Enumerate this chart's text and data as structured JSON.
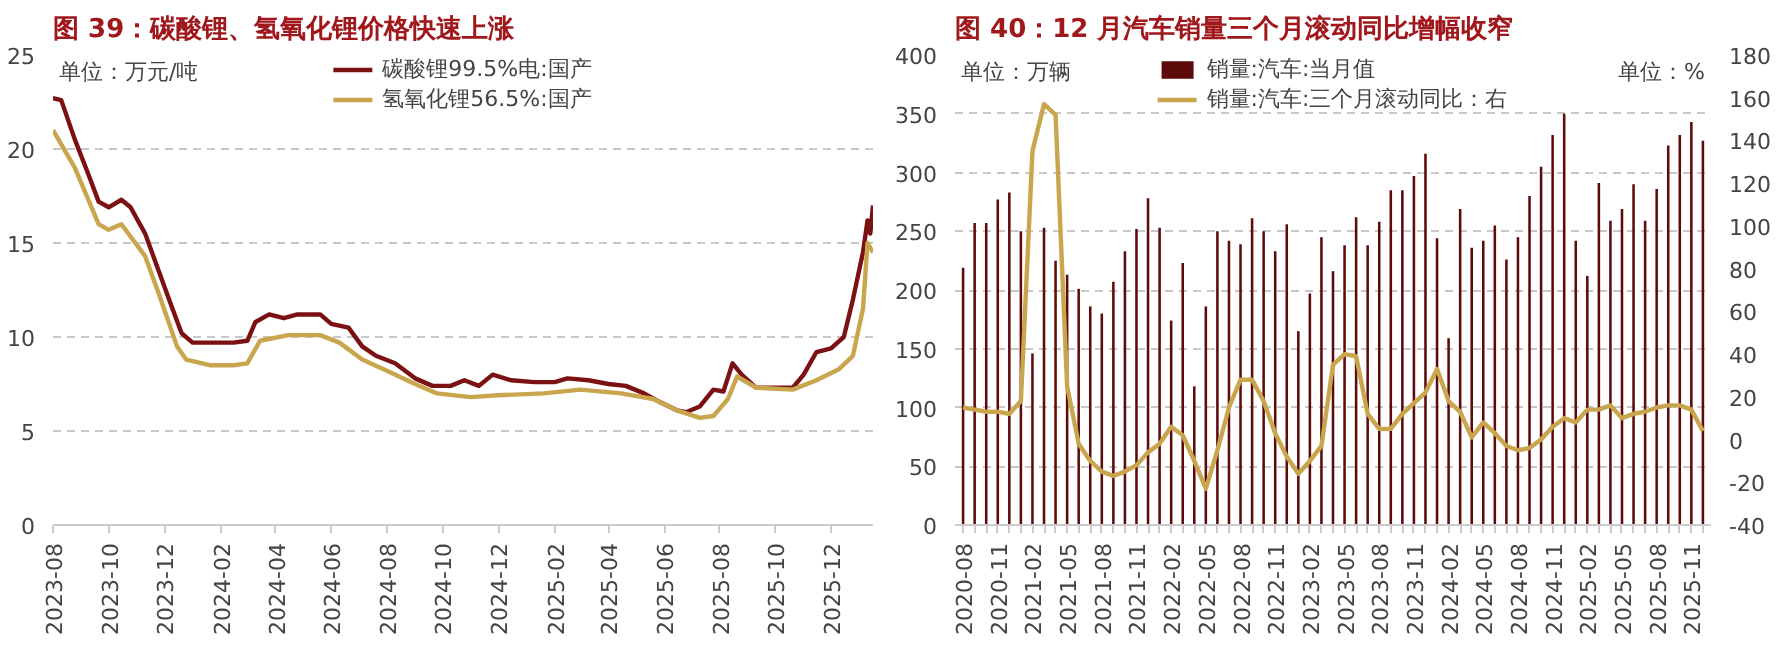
{
  "chart_data": [
    {
      "type": "line",
      "title": "图 39：碳酸锂、氢氧化锂价格快速上涨",
      "ylabel": "单位：万元/吨",
      "legend": "top",
      "grid": "y",
      "xlim": [
        "2023-08-01",
        "2026-01-16"
      ],
      "ylim": [
        0,
        25
      ],
      "yticks": [
        0,
        5,
        10,
        15,
        20,
        25
      ],
      "xticks": [
        "2023-08",
        "2023-10",
        "2023-12",
        "2024-02",
        "2024-04",
        "2024-06",
        "2024-08",
        "2024-10",
        "2024-12",
        "2025-02",
        "2025-04",
        "2025-06",
        "2025-08",
        "2025-10",
        "2025-12"
      ],
      "series": [
        {
          "name": "碳酸锂99.5%电:国产",
          "color": "#7b1113",
          "x": [
            "2023-08-01",
            "2023-08-10",
            "2023-08-25",
            "2023-09-10",
            "2023-09-20",
            "2023-10-01",
            "2023-10-15",
            "2023-10-25",
            "2023-11-10",
            "2023-11-25",
            "2023-12-10",
            "2023-12-20",
            "2024-01-01",
            "2024-02-15",
            "2024-03-01",
            "2024-03-10",
            "2024-03-25",
            "2024-04-10",
            "2024-04-25",
            "2024-05-20",
            "2024-06-01",
            "2024-06-20",
            "2024-07-05",
            "2024-07-20",
            "2024-08-10",
            "2024-09-01",
            "2024-09-20",
            "2024-10-10",
            "2024-10-25",
            "2024-11-10",
            "2024-11-25",
            "2024-12-15",
            "2025-01-10",
            "2025-02-01",
            "2025-02-15",
            "2025-03-10",
            "2025-04-01",
            "2025-04-20",
            "2025-05-10",
            "2025-05-25",
            "2025-06-15",
            "2025-06-25",
            "2025-07-10",
            "2025-07-25",
            "2025-08-05",
            "2025-08-15",
            "2025-08-25",
            "2025-09-10",
            "2025-10-01",
            "2025-10-20",
            "2025-11-01",
            "2025-11-15",
            "2025-12-01",
            "2025-12-15",
            "2025-12-25",
            "2026-01-05",
            "2026-01-10",
            "2026-01-13",
            "2026-01-16"
          ],
          "values": [
            22.7,
            22.6,
            20.5,
            18.5,
            17.2,
            16.9,
            17.3,
            16.9,
            15.5,
            13.5,
            11.5,
            10.2,
            9.7,
            9.7,
            9.8,
            10.8,
            11.2,
            11.0,
            11.2,
            11.2,
            10.7,
            10.5,
            9.5,
            9.0,
            8.6,
            7.8,
            7.4,
            7.4,
            7.7,
            7.4,
            8.0,
            7.7,
            7.6,
            7.6,
            7.8,
            7.7,
            7.5,
            7.4,
            7.0,
            6.6,
            6.1,
            6.0,
            6.3,
            7.2,
            7.1,
            8.6,
            8.0,
            7.3,
            7.3,
            7.3,
            8.0,
            9.2,
            9.4,
            10.0,
            12.0,
            14.5,
            16.2,
            15.5,
            17.0
          ]
        },
        {
          "name": "氢氧化锂56.5%:国产",
          "color": "#c9a54e",
          "x": [
            "2023-08-01",
            "2023-08-25",
            "2023-09-20",
            "2023-10-01",
            "2023-10-15",
            "2023-11-10",
            "2023-11-25",
            "2023-12-15",
            "2023-12-25",
            "2024-01-20",
            "2024-02-15",
            "2024-03-01",
            "2024-03-15",
            "2024-04-15",
            "2024-05-20",
            "2024-06-10",
            "2024-07-05",
            "2024-08-01",
            "2024-09-01",
            "2024-09-25",
            "2024-11-01",
            "2024-12-01",
            "2025-01-20",
            "2025-03-01",
            "2025-04-15",
            "2025-05-20",
            "2025-06-15",
            "2025-07-10",
            "2025-07-25",
            "2025-08-10",
            "2025-08-20",
            "2025-09-10",
            "2025-10-20",
            "2025-11-15",
            "2025-12-10",
            "2025-12-25",
            "2026-01-05",
            "2026-01-10",
            "2026-01-16"
          ],
          "values": [
            21.0,
            19.0,
            16.0,
            15.7,
            16.0,
            14.3,
            12.3,
            9.5,
            8.8,
            8.5,
            8.5,
            8.6,
            9.8,
            10.1,
            10.1,
            9.7,
            8.8,
            8.2,
            7.5,
            7.0,
            6.8,
            6.9,
            7.0,
            7.2,
            7.0,
            6.7,
            6.1,
            5.7,
            5.8,
            6.7,
            7.9,
            7.3,
            7.2,
            7.7,
            8.3,
            9.0,
            11.5,
            15.0,
            14.5
          ]
        }
      ]
    },
    {
      "type": "bar",
      "title": "图 40：12 月汽车销量三个月滚动同比增幅收窄",
      "ylabel": "单位：万辆",
      "y2label": "单位：%",
      "legend": "top",
      "grid": "y",
      "ylim": [
        0,
        400
      ],
      "yticks": [
        0,
        50,
        100,
        150,
        200,
        250,
        300,
        350,
        400
      ],
      "y2lim": [
        -40,
        180
      ],
      "y2ticks": [
        -40,
        -20,
        0,
        20,
        40,
        60,
        80,
        100,
        120,
        140,
        160,
        180
      ],
      "categories": [
        "2020-08",
        null,
        null,
        "2020-11",
        null,
        null,
        "2021-02",
        null,
        null,
        "2021-05",
        null,
        null,
        "2021-08",
        null,
        null,
        "2021-11",
        null,
        null,
        "2022-02",
        null,
        null,
        "2022-05",
        null,
        null,
        "2022-08",
        null,
        null,
        "2022-11",
        null,
        null,
        "2023-02",
        null,
        null,
        "2023-05",
        null,
        null,
        "2023-08",
        null,
        null,
        "2023-11",
        null,
        null,
        "2024-02",
        null,
        null,
        "2024-05",
        null,
        null,
        "2024-08",
        null,
        null,
        "2024-11",
        null,
        null,
        "2025-02",
        null,
        null,
        "2025-05",
        null,
        null,
        "2025-08",
        null,
        null,
        "2025-11",
        null
      ],
      "series": [
        {
          "name": "销量:汽车:当月值",
          "color": "#5c0a0a",
          "values": [
            219,
            257,
            257,
            277,
            283,
            250,
            146,
            253,
            225,
            213,
            201,
            186,
            180,
            207,
            233,
            252,
            278,
            253,
            174,
            223,
            118,
            186,
            250,
            242,
            239,
            261,
            250,
            233,
            256,
            165,
            197,
            245,
            216,
            238,
            262,
            238,
            258,
            285,
            285,
            297,
            316,
            244,
            159,
            269,
            236,
            242,
            255,
            226,
            245,
            280,
            305,
            332,
            350,
            242,
            212,
            291,
            259,
            269,
            290,
            259,
            286,
            323,
            332,
            343,
            327
          ]
        },
        {
          "name": "销量:汽车:三个月滚动同比：右",
          "type": "line",
          "axis": "y2",
          "color": "#c9a54e",
          "values": [
            15,
            14,
            13,
            13,
            12,
            18,
            135,
            157,
            152,
            25,
            -2,
            -10,
            -15,
            -17,
            -15,
            -12,
            -6,
            -2,
            6,
            2,
            -10,
            -23,
            -5,
            15,
            28,
            28,
            18,
            3,
            -8,
            -16,
            -10,
            -3,
            35,
            40,
            39,
            12,
            5,
            5,
            12,
            17,
            22,
            33,
            18,
            13,
            1,
            8,
            3,
            -3,
            -5,
            -4,
            0,
            6,
            10,
            8,
            14,
            14,
            16,
            10,
            12,
            13,
            15,
            16,
            16,
            14,
            4
          ]
        }
      ]
    }
  ]
}
